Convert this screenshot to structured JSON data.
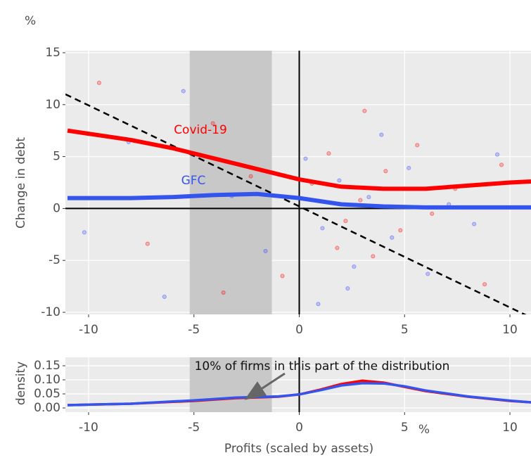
{
  "chart_data": [
    {
      "type": "line",
      "y_unit": "%",
      "ylabel": "Change in debt",
      "xlim": [
        -11.1,
        11
      ],
      "ylim": [
        -10.2,
        15.2
      ],
      "xticks": [
        -10,
        -5,
        0,
        5,
        10
      ],
      "yticks": [
        -10,
        -5,
        0,
        5,
        10,
        15
      ],
      "grid": true,
      "shade_x": [
        -5.2,
        -1.3
      ],
      "vline": 0,
      "hline": 0,
      "reference_line": {
        "x": [
          -11.1,
          11
        ],
        "y": [
          11,
          -10.5
        ],
        "dashed": true,
        "color": "#000000"
      },
      "x": [
        -11,
        -10,
        -8,
        -6,
        -4,
        -2,
        0,
        2,
        4,
        6,
        8,
        10,
        11
      ],
      "series": [
        {
          "name": "Covid-19",
          "color": "#ff0000",
          "values": [
            7.5,
            7.2,
            6.6,
            5.8,
            4.8,
            3.8,
            2.8,
            2.1,
            1.9,
            1.9,
            2.2,
            2.5,
            2.6
          ]
        },
        {
          "name": "GFC",
          "color": "#3355ee",
          "values": [
            1.0,
            1.0,
            1.0,
            1.1,
            1.3,
            1.4,
            1.0,
            0.4,
            0.2,
            0.1,
            0.1,
            0.1,
            0.1
          ]
        }
      ],
      "points": [
        {
          "color": "#ff0000",
          "x": [
            -9.5,
            -7.2,
            -4.1,
            -2.3,
            -0.8,
            0.6,
            1.4,
            2.2,
            2.9,
            3.5,
            4.1,
            4.8,
            5.6,
            6.3,
            7.4,
            8.8,
            1.8,
            3.1,
            -3.6,
            9.6
          ],
          "y": [
            12.1,
            -3.4,
            8.2,
            3.1,
            -6.5,
            2.4,
            5.3,
            -1.2,
            0.8,
            -4.6,
            3.6,
            -2.1,
            6.1,
            -0.5,
            1.9,
            -7.3,
            -3.8,
            9.4,
            -8.1,
            4.2
          ]
        },
        {
          "color": "#3344ff",
          "x": [
            -10.2,
            -8.1,
            -6.4,
            -3.2,
            -1.6,
            0.3,
            1.1,
            1.9,
            2.6,
            3.3,
            4.4,
            5.2,
            6.1,
            7.1,
            8.3,
            9.4,
            -5.5,
            2.3,
            3.9,
            0.9
          ],
          "y": [
            -2.3,
            6.4,
            -8.5,
            1.2,
            -4.1,
            4.8,
            -1.9,
            2.7,
            -5.6,
            1.1,
            -2.8,
            3.9,
            -6.3,
            0.4,
            -1.5,
            5.2,
            11.3,
            -7.7,
            7.1,
            -9.2
          ]
        }
      ],
      "labels": [
        "Covid-19",
        "GFC"
      ]
    },
    {
      "type": "line",
      "ylabel": "density",
      "xlabel": "Profits (scaled by assets)",
      "x_unit": "%",
      "annotation": "10% of firms in this part of the distribution",
      "xlim": [
        -11.1,
        11
      ],
      "ylim": [
        -0.015,
        0.18
      ],
      "xticks": [
        -10,
        -5,
        0,
        5,
        10
      ],
      "yticks": [
        {
          "value": 0,
          "label": "0.00"
        },
        {
          "value": 0.05,
          "label": "0.05"
        },
        {
          "value": 0.1,
          "label": "0.10"
        },
        {
          "value": 0.15,
          "label": "0.15"
        }
      ],
      "grid": true,
      "shade_x": [
        -5.2,
        -1.3
      ],
      "vline": 0,
      "x": [
        -11,
        -8,
        -5,
        -3,
        -1,
        0,
        1,
        2,
        3,
        4,
        5,
        6,
        8,
        10,
        11
      ],
      "series": [
        {
          "name": "Covid-19",
          "color": "#ff0000",
          "values": [
            0.01,
            0.015,
            0.025,
            0.035,
            0.04,
            0.048,
            0.065,
            0.085,
            0.097,
            0.09,
            0.075,
            0.06,
            0.04,
            0.025,
            0.02
          ]
        },
        {
          "name": "GFC",
          "color": "#3355ee",
          "values": [
            0.01,
            0.015,
            0.027,
            0.037,
            0.041,
            0.048,
            0.063,
            0.08,
            0.088,
            0.087,
            0.077,
            0.062,
            0.041,
            0.026,
            0.02
          ]
        }
      ]
    }
  ]
}
